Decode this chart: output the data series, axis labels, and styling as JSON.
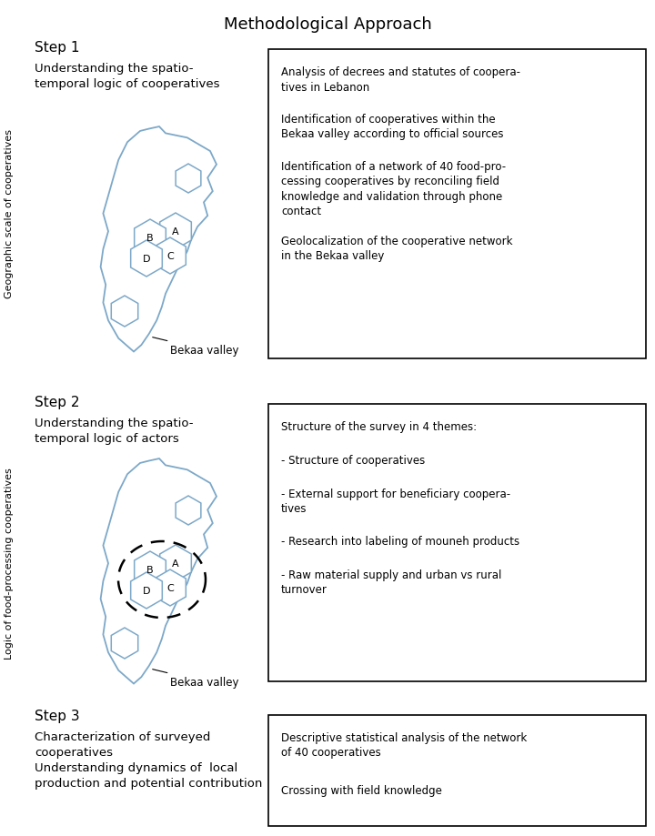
{
  "title": "Methodological Approach",
  "title_fontsize": 13,
  "bg_color": "#ffffff",
  "map_edge_color": "#7da8c8",
  "map_fill_color": "#ffffff",
  "hex_edge_color": "#7da8c8",
  "hex_fill_color": "#ffffff",
  "step1": {
    "label": "Step 1",
    "left_text": "Understanding the spatio-\ntemporal logic of cooperatives",
    "right_bullets": [
      "Analysis of decrees and statutes of coopera-\ntives in Lebanon",
      "Identification of cooperatives within the\nBekaa valley according to official sources",
      "Identification of a network of 40 food-pro-\ncessing cooperatives by reconciling field\nknowledge and validation through phone\ncontact",
      "Geolocalization of the cooperative network\nin the Bekaa valley"
    ]
  },
  "step2": {
    "label": "Step 2",
    "left_text": "Understanding the spatio-\ntemporal logic of actors",
    "right_bullets": [
      "Structure of the survey in 4 themes:",
      "- Structure of cooperatives",
      "- External support for beneficiary coopera-\ntives",
      "- Research into labeling of mouneh products",
      "- Raw material supply and urban vs rural\nturnover"
    ]
  },
  "step3": {
    "label": "Step 3",
    "left_text": "Characterization of surveyed\ncooperatives\nUnderstanding dynamics of  local\nproduction and potential contribution",
    "right_bullets": [
      "Descriptive statistical analysis of the network\nof 40 cooperatives",
      "Crossing with field knowledge"
    ]
  },
  "y_label_left": "Geographic scale of cooperatives",
  "y_label_right": "Logic of food-processing cooperatives",
  "bekaa_label": "Bekaa valley"
}
